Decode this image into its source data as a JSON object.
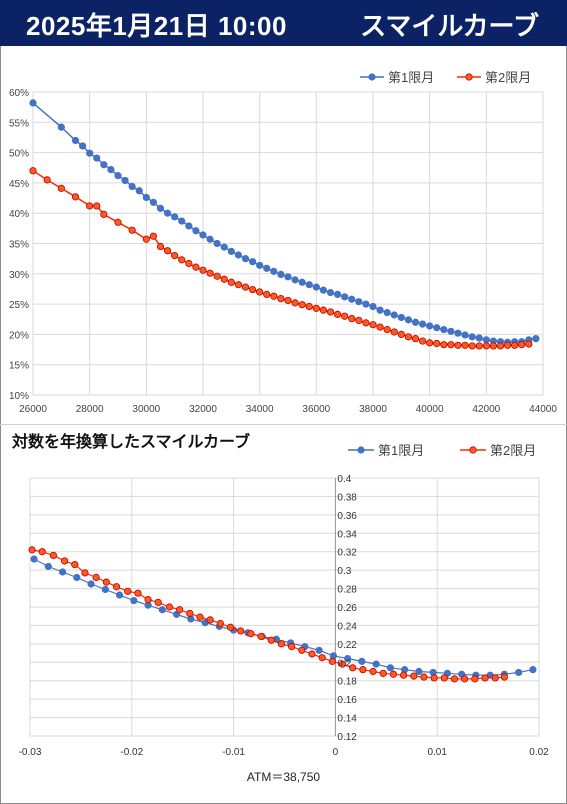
{
  "header": {
    "date": "2025年1月21日 10:00",
    "title": "スマイルカーブ"
  },
  "colors": {
    "header_bg": "#0b2265",
    "series1": "#4472c4",
    "series2": "#ff2a00",
    "series2_marker_fill": "#ff5a1f",
    "series2_marker_stroke": "#c00000"
  },
  "chart_data": [
    {
      "type": "line",
      "title": "",
      "xlabel": "",
      "ylabel": "",
      "xlim": [
        26000,
        44000
      ],
      "ylim": [
        0.1,
        0.6
      ],
      "x_ticks": [
        26000,
        28000,
        30000,
        32000,
        34000,
        36000,
        38000,
        40000,
        42000,
        44000
      ],
      "x_tick_labels": [
        "26000",
        "28000",
        "30000",
        "32000",
        "34000",
        "36000",
        "38000",
        "40000",
        "42000",
        "44000"
      ],
      "y_ticks": [
        0.1,
        0.15,
        0.2,
        0.25,
        0.3,
        0.35,
        0.4,
        0.45,
        0.5,
        0.55,
        0.6
      ],
      "y_tick_labels": [
        "10%",
        "15%",
        "20%",
        "25%",
        "30%",
        "35%",
        "40%",
        "45%",
        "50%",
        "55%",
        "60%"
      ],
      "grid": true,
      "legend_position": "top-right",
      "series": [
        {
          "name": "第1限月",
          "x": [
            26000,
            27000,
            27500,
            27750,
            28000,
            28250,
            28500,
            28750,
            29000,
            29250,
            29500,
            29750,
            30000,
            30250,
            30500,
            30750,
            31000,
            31250,
            31500,
            31750,
            32000,
            32250,
            32500,
            32750,
            33000,
            33250,
            33500,
            33750,
            34000,
            34250,
            34500,
            34750,
            35000,
            35250,
            35500,
            35750,
            36000,
            36250,
            36500,
            36750,
            37000,
            37250,
            37500,
            37750,
            38000,
            38250,
            38500,
            38750,
            39000,
            39250,
            39500,
            39750,
            40000,
            40250,
            40500,
            40750,
            41000,
            41250,
            41500,
            41750,
            42000,
            42250,
            42500,
            42750,
            43000,
            43250,
            43500,
            43750
          ],
          "y": [
            0.582,
            0.542,
            0.52,
            0.511,
            0.499,
            0.491,
            0.48,
            0.472,
            0.462,
            0.454,
            0.444,
            0.437,
            0.426,
            0.418,
            0.408,
            0.4,
            0.394,
            0.387,
            0.379,
            0.371,
            0.364,
            0.357,
            0.35,
            0.344,
            0.337,
            0.331,
            0.325,
            0.32,
            0.314,
            0.309,
            0.304,
            0.299,
            0.295,
            0.29,
            0.286,
            0.282,
            0.278,
            0.273,
            0.269,
            0.266,
            0.262,
            0.258,
            0.254,
            0.25,
            0.246,
            0.24,
            0.236,
            0.232,
            0.228,
            0.224,
            0.22,
            0.217,
            0.214,
            0.211,
            0.208,
            0.205,
            0.202,
            0.199,
            0.196,
            0.194,
            0.191,
            0.189,
            0.188,
            0.187,
            0.188,
            0.188,
            0.191,
            0.193
          ]
        },
        {
          "name": "第2限月",
          "x": [
            26000,
            26500,
            27000,
            27500,
            28000,
            28250,
            28500,
            29000,
            29500,
            30000,
            30250,
            30500,
            30750,
            31000,
            31250,
            31500,
            31750,
            32000,
            32250,
            32500,
            32750,
            33000,
            33250,
            33500,
            33750,
            34000,
            34250,
            34500,
            34750,
            35000,
            35250,
            35500,
            35750,
            36000,
            36250,
            36500,
            36750,
            37000,
            37250,
            37500,
            37750,
            38000,
            38250,
            38500,
            38750,
            39000,
            39250,
            39500,
            39750,
            40000,
            40250,
            40500,
            40750,
            41000,
            41250,
            41500,
            41750,
            42000,
            42250,
            42500,
            42750,
            43000,
            43250,
            43500
          ],
          "y": [
            0.47,
            0.455,
            0.441,
            0.427,
            0.412,
            0.412,
            0.398,
            0.385,
            0.372,
            0.357,
            0.362,
            0.345,
            0.338,
            0.33,
            0.323,
            0.317,
            0.311,
            0.306,
            0.301,
            0.296,
            0.291,
            0.286,
            0.282,
            0.278,
            0.274,
            0.27,
            0.266,
            0.263,
            0.259,
            0.256,
            0.252,
            0.249,
            0.246,
            0.243,
            0.24,
            0.237,
            0.233,
            0.23,
            0.226,
            0.223,
            0.219,
            0.216,
            0.212,
            0.208,
            0.204,
            0.2,
            0.196,
            0.193,
            0.189,
            0.186,
            0.185,
            0.183,
            0.183,
            0.182,
            0.182,
            0.181,
            0.181,
            0.181,
            0.181,
            0.181,
            0.182,
            0.182,
            0.183,
            0.184
          ]
        }
      ]
    },
    {
      "type": "line",
      "title": "対数を年換算したスマイルカーブ",
      "xlabel": "ATM＝38,750",
      "ylabel": "",
      "xlim": [
        -0.03,
        0.02
      ],
      "ylim": [
        0.12,
        0.4
      ],
      "x_ticks": [
        -0.03,
        -0.02,
        -0.01,
        0,
        0.01,
        0.02
      ],
      "x_tick_labels": [
        "-0.03",
        "-0.02",
        "-0.01",
        "0",
        "0.01",
        "0.02"
      ],
      "y_ticks": [
        0.12,
        0.14,
        0.16,
        0.18,
        0.2,
        0.22,
        0.24,
        0.26,
        0.28,
        0.3,
        0.32,
        0.34,
        0.36,
        0.38,
        0.4
      ],
      "y_tick_labels": [
        "0.12",
        "0.14",
        "0.16",
        "0.18",
        "0.2",
        "0.22",
        "0.24",
        "0.26",
        "0.28",
        "0.3",
        "0.32",
        "0.34",
        "0.36",
        "0.38",
        "0.4"
      ],
      "grid": true,
      "legend_position": "top-right",
      "series": [
        {
          "name": "第1限月",
          "x": [
            -0.0296,
            -0.0282,
            -0.0268,
            -0.0254,
            -0.024,
            -0.0226,
            -0.0212,
            -0.0198,
            -0.0184,
            -0.017,
            -0.0156,
            -0.0142,
            -0.0128,
            -0.0114,
            -0.01,
            -0.0086,
            -0.0072,
            -0.0058,
            -0.0044,
            -0.003,
            -0.0016,
            -0.0002,
            0.0012,
            0.0026,
            0.004,
            0.0054,
            0.0068,
            0.0082,
            0.0096,
            0.011,
            0.0124,
            0.0138,
            0.0152,
            0.0166,
            0.018,
            0.0194
          ],
          "y": [
            0.312,
            0.304,
            0.298,
            0.292,
            0.285,
            0.279,
            0.273,
            0.267,
            0.262,
            0.257,
            0.252,
            0.247,
            0.243,
            0.239,
            0.235,
            0.232,
            0.228,
            0.225,
            0.221,
            0.217,
            0.213,
            0.207,
            0.204,
            0.201,
            0.198,
            0.194,
            0.192,
            0.19,
            0.189,
            0.188,
            0.187,
            0.186,
            0.186,
            0.187,
            0.189,
            0.192
          ]
        },
        {
          "name": "第2限月",
          "x": [
            -0.0298,
            -0.0288,
            -0.0277,
            -0.0266,
            -0.0256,
            -0.0246,
            -0.0235,
            -0.0225,
            -0.0215,
            -0.0204,
            -0.0194,
            -0.0184,
            -0.0174,
            -0.0163,
            -0.0153,
            -0.0143,
            -0.0133,
            -0.0123,
            -0.0113,
            -0.0103,
            -0.0093,
            -0.0083,
            -0.0073,
            -0.0063,
            -0.0053,
            -0.0043,
            -0.0033,
            -0.0023,
            -0.0013,
            -0.0003,
            0.0007,
            0.0017,
            0.0027,
            0.0037,
            0.0047,
            0.0057,
            0.0067,
            0.0077,
            0.0087,
            0.0097,
            0.0107,
            0.0117,
            0.0127,
            0.0137,
            0.0147,
            0.0157,
            0.0166
          ],
          "y": [
            0.322,
            0.32,
            0.316,
            0.31,
            0.306,
            0.297,
            0.292,
            0.287,
            0.282,
            0.277,
            0.275,
            0.268,
            0.265,
            0.26,
            0.257,
            0.253,
            0.249,
            0.246,
            0.242,
            0.238,
            0.234,
            0.231,
            0.228,
            0.224,
            0.22,
            0.217,
            0.213,
            0.209,
            0.205,
            0.201,
            0.198,
            0.194,
            0.192,
            0.19,
            0.188,
            0.187,
            0.186,
            0.185,
            0.184,
            0.183,
            0.183,
            0.182,
            0.182,
            0.182,
            0.183,
            0.183,
            0.184
          ]
        }
      ]
    }
  ]
}
